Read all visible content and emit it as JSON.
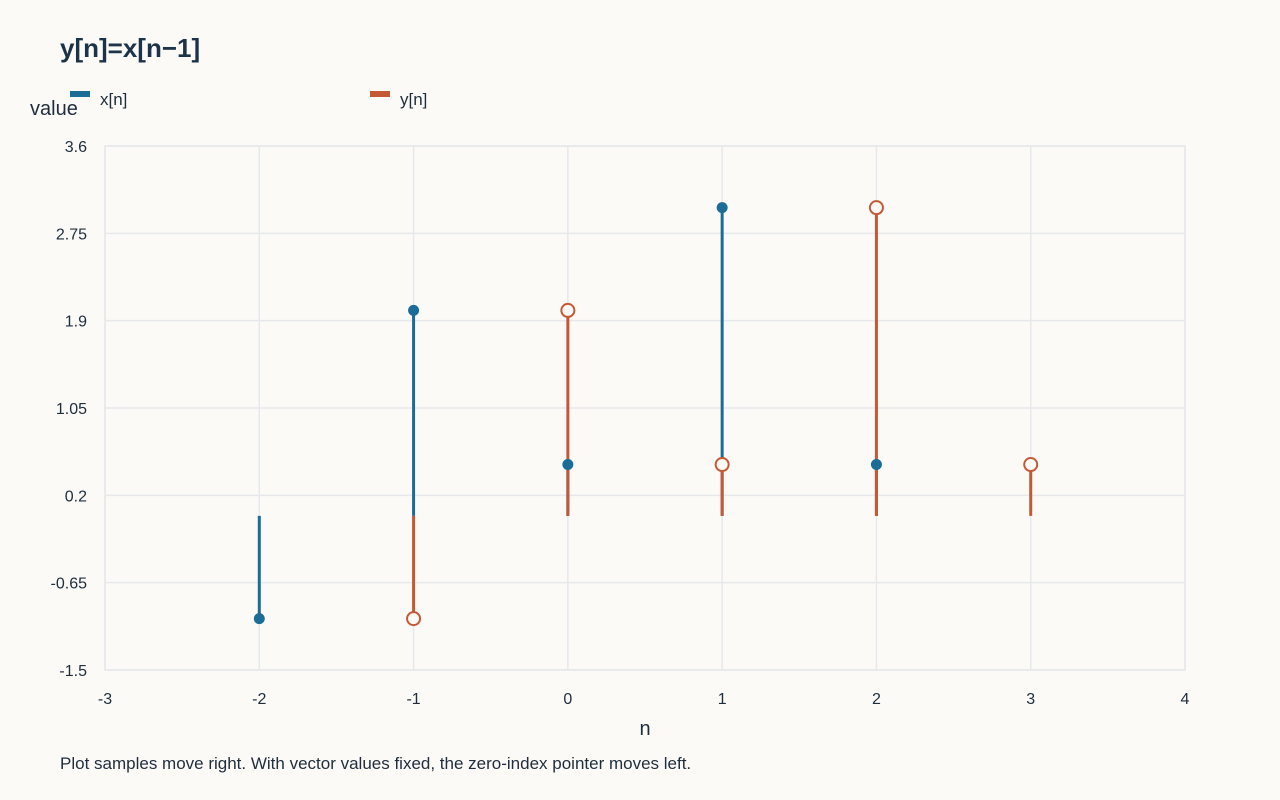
{
  "title": "y[n]=x[n−1]",
  "caption": "Plot samples move right. With vector values fixed, the zero-index pointer moves left.",
  "colors": {
    "background": "#fbfaf7",
    "grid": "#e6e8eb",
    "x_series": "#1c6c98",
    "y_series": "#c45a35",
    "text": "#1f2d3d"
  },
  "chart_data": {
    "type": "stem",
    "title": "y[n]=x[n−1]",
    "xlabel": "n",
    "ylabel": "value",
    "xlim": [
      -3,
      4
    ],
    "ylim": [
      -1.5,
      3.6
    ],
    "xticks": [
      "-3",
      "-2",
      "-1",
      "0",
      "1",
      "2",
      "3",
      "4"
    ],
    "yticks": [
      "3.6",
      "2.75",
      "1.9",
      "1.05",
      "0.2",
      "-0.65",
      "-1.5"
    ],
    "grid": true,
    "legend_position": "top-left",
    "baseline": 0,
    "series": [
      {
        "name": "x[n]",
        "marker": "filled",
        "points": [
          {
            "x": -2,
            "y": -1
          },
          {
            "x": -1,
            "y": 2
          },
          {
            "x": 0,
            "y": 0.5
          },
          {
            "x": 1,
            "y": 3
          },
          {
            "x": 2,
            "y": 0.5
          }
        ]
      },
      {
        "name": "y[n]",
        "marker": "hollow",
        "points": [
          {
            "x": -1,
            "y": -1
          },
          {
            "x": 0,
            "y": 2
          },
          {
            "x": 1,
            "y": 0.5
          },
          {
            "x": 2,
            "y": 3
          },
          {
            "x": 3,
            "y": 0.5
          }
        ]
      }
    ]
  }
}
